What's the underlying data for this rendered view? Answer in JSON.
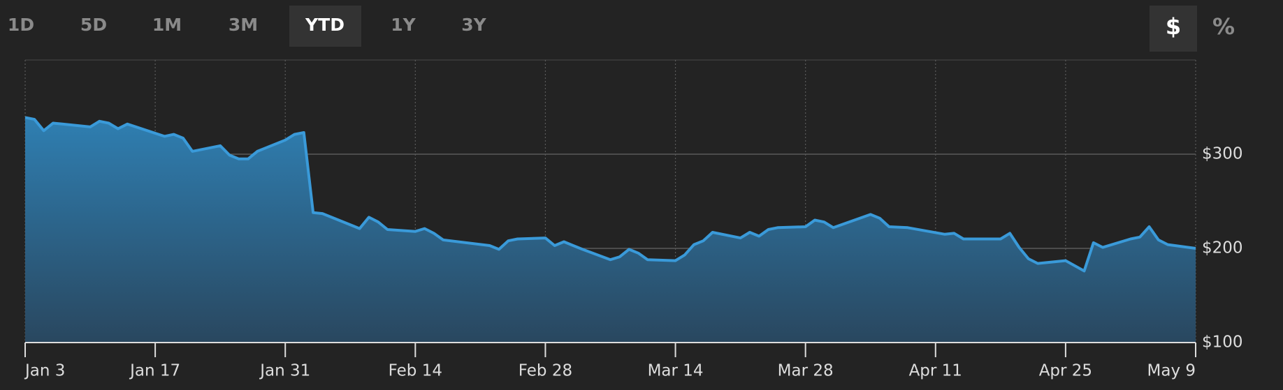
{
  "controls": {
    "ranges": [
      "1D",
      "5D",
      "1M",
      "3M",
      "YTD",
      "1Y",
      "3Y"
    ],
    "selected_range": "YTD",
    "units": [
      "$",
      "%"
    ],
    "selected_unit": "$"
  },
  "chart_data": {
    "type": "area",
    "color": "#3a9ad9",
    "grid": true,
    "x": [
      "Jan 3",
      "Jan 4",
      "Jan 5",
      "Jan 6",
      "Jan 7",
      "Jan 10",
      "Jan 11",
      "Jan 12",
      "Jan 13",
      "Jan 14",
      "Jan 18",
      "Jan 19",
      "Jan 20",
      "Jan 21",
      "Jan 24",
      "Jan 25",
      "Jan 26",
      "Jan 27",
      "Jan 28",
      "Jan 31",
      "Feb 1",
      "Feb 2",
      "Feb 3",
      "Feb 4",
      "Feb 8",
      "Feb 9",
      "Feb 10",
      "Feb 11",
      "Feb 14",
      "Feb 15",
      "Feb 16",
      "Feb 17",
      "Feb 22",
      "Feb 23",
      "Feb 24",
      "Feb 25",
      "Feb 28",
      "Mar 1",
      "Mar 2",
      "Mar 3",
      "Mar 4",
      "Mar 7",
      "Mar 8",
      "Mar 9",
      "Mar 10",
      "Mar 11",
      "Mar 14",
      "Mar 15",
      "Mar 16",
      "Mar 17",
      "Mar 18",
      "Mar 21",
      "Mar 22",
      "Mar 23",
      "Mar 24",
      "Mar 25",
      "Mar 28",
      "Mar 29",
      "Mar 30",
      "Mar 31",
      "Apr 4",
      "Apr 5",
      "Apr 6",
      "Apr 8",
      "Apr 12",
      "Apr 13",
      "Apr 14",
      "Apr 18",
      "Apr 19",
      "Apr 20",
      "Apr 21",
      "Apr 22",
      "Apr 25",
      "Apr 27",
      "Apr 28",
      "Apr 29",
      "May 2",
      "May 3",
      "May 4",
      "May 5",
      "May 6",
      "May 9"
    ],
    "values": [
      339,
      337,
      325,
      333,
      332,
      329,
      335,
      333,
      327,
      332,
      319,
      321,
      317,
      303,
      309,
      299,
      295,
      295,
      303,
      315,
      321,
      323,
      238,
      237,
      221,
      233,
      228,
      220,
      218,
      221,
      216,
      209,
      203,
      199,
      208,
      210,
      211,
      203,
      207,
      203,
      199,
      188,
      191,
      199,
      195,
      188,
      187,
      193,
      204,
      208,
      217,
      211,
      217,
      213,
      220,
      222,
      223,
      230,
      228,
      222,
      236,
      232,
      223,
      222,
      215,
      216,
      210,
      210,
      216,
      201,
      189,
      184,
      187,
      176,
      206,
      201,
      210,
      212,
      223,
      209,
      204,
      200
    ],
    "xlim": [
      "Jan 3",
      "May 9"
    ],
    "xticks": [
      "Jan 3",
      "Jan 17",
      "Jan 31",
      "Feb 14",
      "Feb 28",
      "Mar 14",
      "Mar 28",
      "Apr 11",
      "Apr 25",
      "May 9"
    ],
    "ylim": [
      100,
      400
    ],
    "yticks": [
      {
        "value": 100,
        "label": "$100"
      },
      {
        "value": 200,
        "label": "$200"
      },
      {
        "value": 300,
        "label": "$300"
      }
    ]
  }
}
